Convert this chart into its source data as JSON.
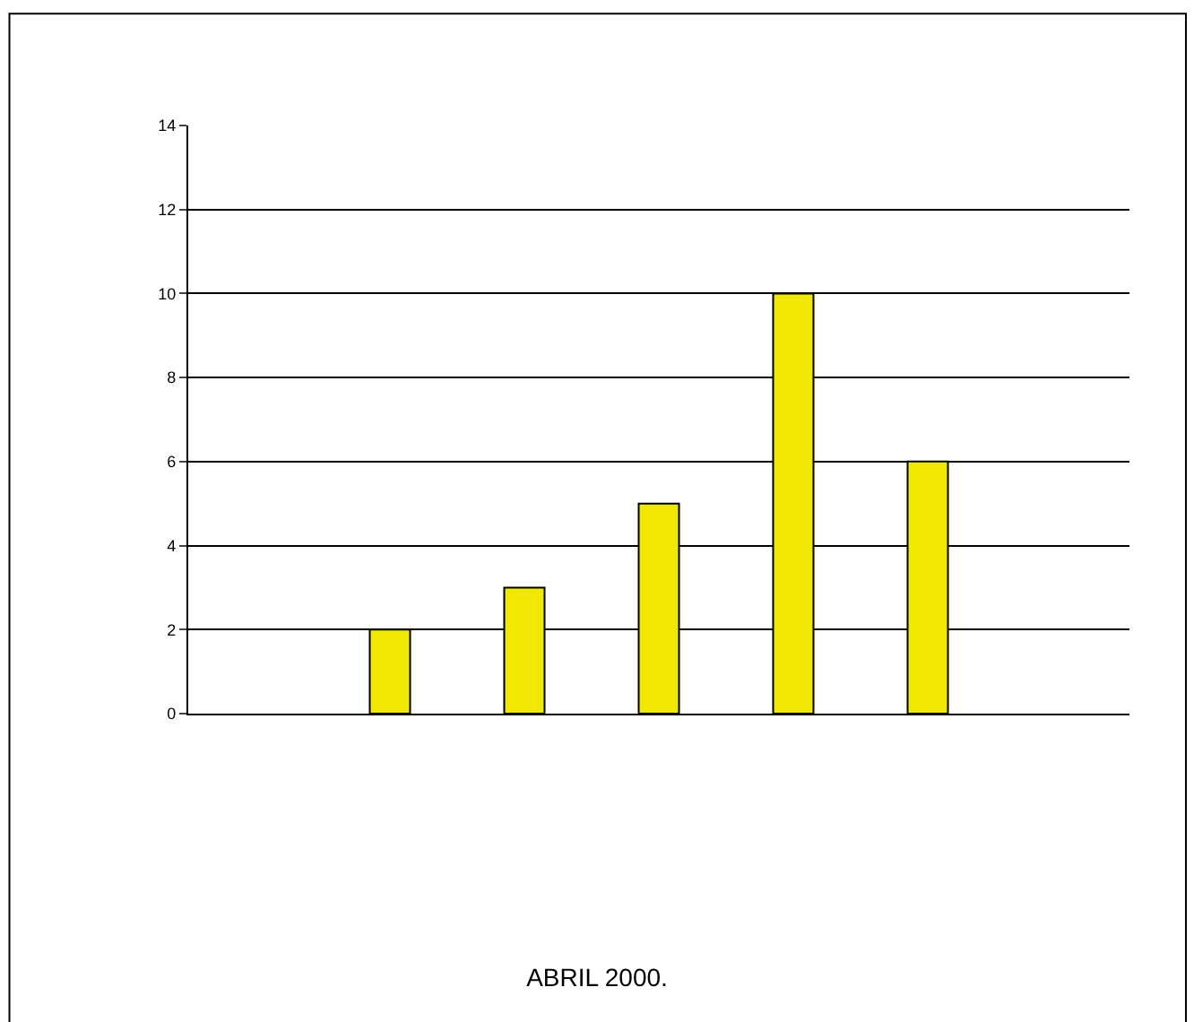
{
  "chart_data": {
    "type": "bar",
    "title": "ABRIL 2000.",
    "categories": [
      null,
      null,
      null,
      null,
      null,
      null,
      null
    ],
    "values": [
      0,
      2,
      3,
      5,
      10,
      6,
      0
    ],
    "color": "#f0e800",
    "ylim": [
      0,
      14
    ],
    "yticks": [
      0,
      2,
      4,
      6,
      8,
      10,
      12,
      14
    ],
    "grid": "y"
  }
}
